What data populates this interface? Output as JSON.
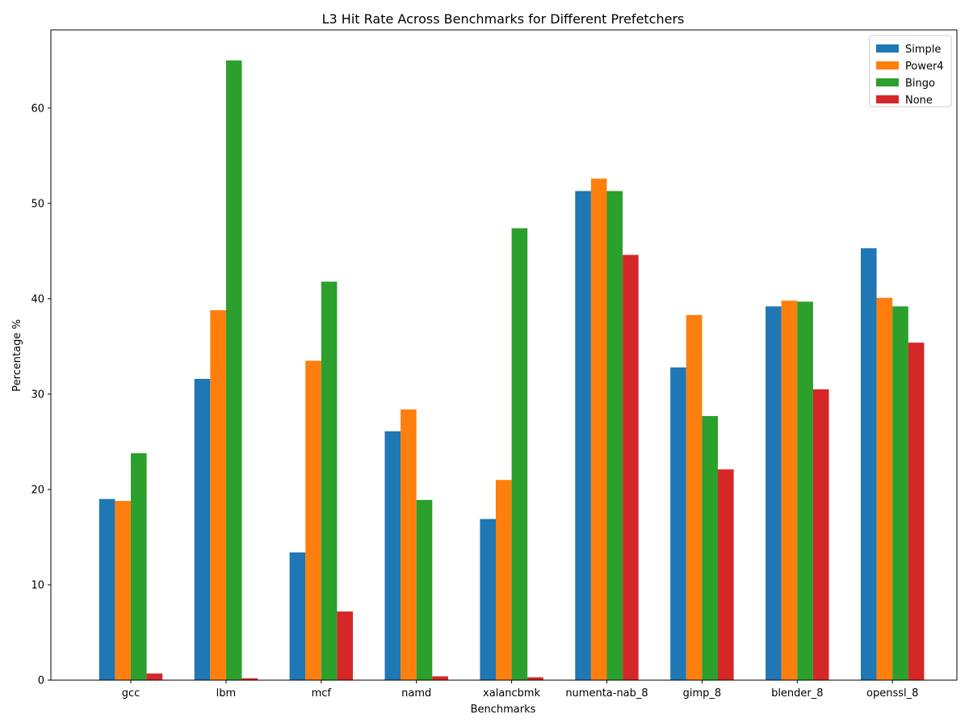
{
  "chart_data": {
    "type": "bar",
    "title": "L3 Hit Rate Across Benchmarks for Different Prefetchers",
    "xlabel": "Benchmarks",
    "ylabel": "Percentage %",
    "ylim": [
      0,
      68.2
    ],
    "yticks": [
      0,
      10,
      20,
      30,
      40,
      50,
      60
    ],
    "grid": false,
    "legend_position": "top-right",
    "categories": [
      "gcc",
      "lbm",
      "mcf",
      "namd",
      "xalancbmk",
      "numenta-nab_8",
      "gimp_8",
      "blender_8",
      "openssl_8"
    ],
    "series": [
      {
        "name": "Simple",
        "color": "#1f77b4",
        "values": [
          19.0,
          31.6,
          13.4,
          26.1,
          16.9,
          51.3,
          32.8,
          39.2,
          45.3
        ]
      },
      {
        "name": "Power4",
        "color": "#ff7f0e",
        "values": [
          18.8,
          38.8,
          33.5,
          28.4,
          21.0,
          52.6,
          38.3,
          39.8,
          40.1
        ]
      },
      {
        "name": "Bingo",
        "color": "#2ca02c",
        "values": [
          23.8,
          65.0,
          41.8,
          18.9,
          47.4,
          51.3,
          27.7,
          39.7,
          39.2
        ]
      },
      {
        "name": "None",
        "color": "#d62728",
        "values": [
          0.7,
          0.2,
          7.2,
          0.4,
          0.3,
          44.6,
          22.1,
          30.5,
          35.4
        ]
      }
    ]
  }
}
